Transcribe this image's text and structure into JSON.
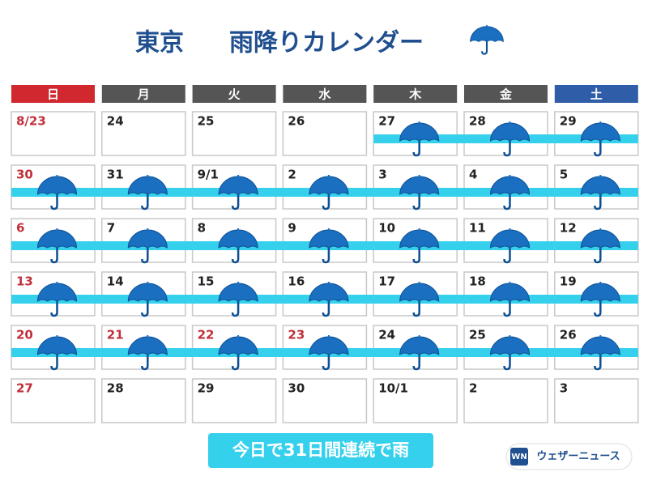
{
  "header": {
    "city": "東京",
    "title": "雨降りカレンダー"
  },
  "weekdays": [
    {
      "label": "日",
      "color": "#d0282e"
    },
    {
      "label": "月",
      "color": "#555555"
    },
    {
      "label": "火",
      "color": "#555555"
    },
    {
      "label": "水",
      "color": "#555555"
    },
    {
      "label": "木",
      "color": "#555555"
    },
    {
      "label": "金",
      "color": "#555555"
    },
    {
      "label": "土",
      "color": "#2f5da8"
    }
  ],
  "weeks": [
    [
      {
        "day": "8/23",
        "red": true,
        "rain": false
      },
      {
        "day": "24",
        "red": false,
        "rain": false
      },
      {
        "day": "25",
        "red": false,
        "rain": false
      },
      {
        "day": "26",
        "red": false,
        "rain": false
      },
      {
        "day": "27",
        "red": false,
        "rain": true
      },
      {
        "day": "28",
        "red": false,
        "rain": true
      },
      {
        "day": "29",
        "red": false,
        "rain": true
      }
    ],
    [
      {
        "day": "30",
        "red": true,
        "rain": true
      },
      {
        "day": "31",
        "red": false,
        "rain": true
      },
      {
        "day": "9/1",
        "red": false,
        "rain": true
      },
      {
        "day": "2",
        "red": false,
        "rain": true
      },
      {
        "day": "3",
        "red": false,
        "rain": true
      },
      {
        "day": "4",
        "red": false,
        "rain": true
      },
      {
        "day": "5",
        "red": false,
        "rain": true
      }
    ],
    [
      {
        "day": "6",
        "red": true,
        "rain": true
      },
      {
        "day": "7",
        "red": false,
        "rain": true
      },
      {
        "day": "8",
        "red": false,
        "rain": true
      },
      {
        "day": "9",
        "red": false,
        "rain": true
      },
      {
        "day": "10",
        "red": false,
        "rain": true
      },
      {
        "day": "11",
        "red": false,
        "rain": true
      },
      {
        "day": "12",
        "red": false,
        "rain": true
      }
    ],
    [
      {
        "day": "13",
        "red": true,
        "rain": true
      },
      {
        "day": "14",
        "red": false,
        "rain": true
      },
      {
        "day": "15",
        "red": false,
        "rain": true
      },
      {
        "day": "16",
        "red": false,
        "rain": true
      },
      {
        "day": "17",
        "red": false,
        "rain": true
      },
      {
        "day": "18",
        "red": false,
        "rain": true
      },
      {
        "day": "19",
        "red": false,
        "rain": true
      }
    ],
    [
      {
        "day": "20",
        "red": true,
        "rain": true
      },
      {
        "day": "21",
        "red": true,
        "rain": true
      },
      {
        "day": "22",
        "red": true,
        "rain": true
      },
      {
        "day": "23",
        "red": true,
        "rain": true
      },
      {
        "day": "24",
        "red": false,
        "rain": true
      },
      {
        "day": "25",
        "red": false,
        "rain": true
      },
      {
        "day": "26",
        "red": false,
        "rain": true
      }
    ],
    [
      {
        "day": "27",
        "red": true,
        "rain": false
      },
      {
        "day": "28",
        "red": false,
        "rain": false
      },
      {
        "day": "29",
        "red": false,
        "rain": false
      },
      {
        "day": "30",
        "red": false,
        "rain": false
      },
      {
        "day": "10/1",
        "red": false,
        "rain": false
      },
      {
        "day": "2",
        "red": false,
        "rain": false
      },
      {
        "day": "3",
        "red": false,
        "rain": false
      }
    ]
  ],
  "footer": {
    "streak": "今日で31日間連続で雨",
    "logo_mark": "WN",
    "logo_text": "ウェザーニュース"
  }
}
